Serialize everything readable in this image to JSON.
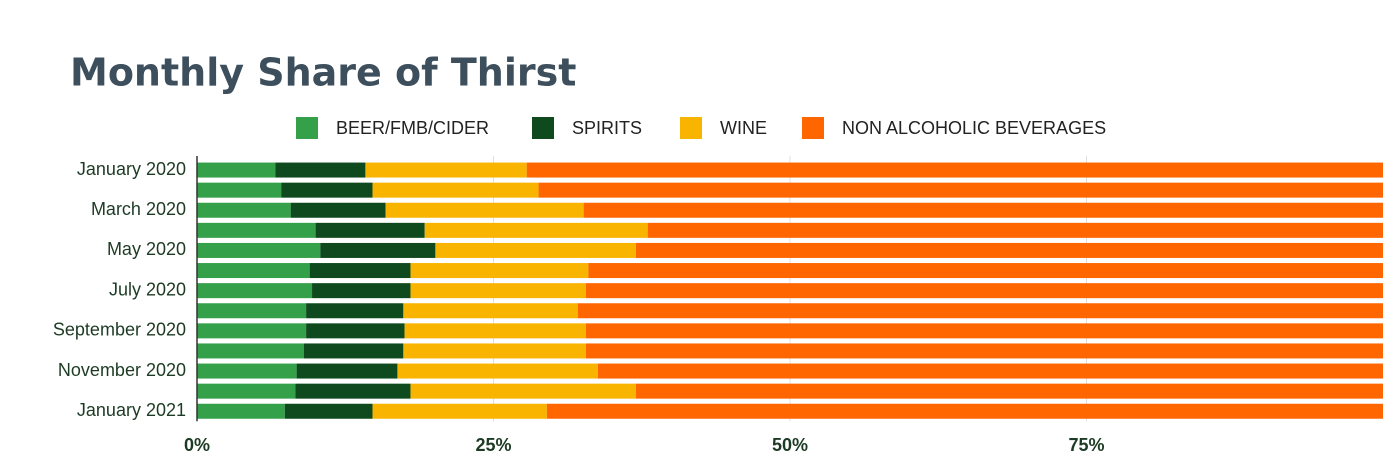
{
  "chart_data": {
    "type": "stacked_bar_horizontal",
    "title": "Monthly Share of Thirst",
    "categories": [
      "January 2020",
      null,
      "March 2020",
      null,
      "May 2020",
      null,
      "July 2020",
      null,
      "September 2020",
      null,
      "November 2020",
      null,
      "January 2021"
    ],
    "series": [
      {
        "name": "BEER/FMB/CIDER",
        "color": "#34a04a",
        "values": [
          6.6,
          7.1,
          7.9,
          10.0,
          10.4,
          9.5,
          9.7,
          9.2,
          9.2,
          9.0,
          8.4,
          8.3,
          7.4
        ]
      },
      {
        "name": "SPIRITS",
        "color": "#0f4a1e",
        "values": [
          7.6,
          7.7,
          8.0,
          9.2,
          9.7,
          8.5,
          8.3,
          8.2,
          8.3,
          8.4,
          8.5,
          9.7,
          7.4
        ]
      },
      {
        "name": "WINE",
        "color": "#f9b400",
        "values": [
          13.6,
          14.0,
          16.7,
          18.8,
          16.9,
          15.0,
          14.8,
          14.7,
          15.3,
          15.4,
          16.9,
          19.0,
          14.7
        ]
      },
      {
        "name": "NON ALCOHOLIC BEVERAGES",
        "color": "#ff6600",
        "values": [
          72.2,
          71.2,
          67.4,
          62.0,
          63.0,
          67.0,
          67.2,
          67.9,
          67.2,
          67.2,
          66.2,
          63.0,
          70.5
        ]
      }
    ],
    "xlim": [
      0,
      100
    ],
    "xticks": [
      {
        "value": 0,
        "label": "0%"
      },
      {
        "value": 25,
        "label": "25%"
      },
      {
        "value": 50,
        "label": "50%"
      },
      {
        "value": 75,
        "label": "75%"
      }
    ],
    "grid": true,
    "legend": "top"
  }
}
